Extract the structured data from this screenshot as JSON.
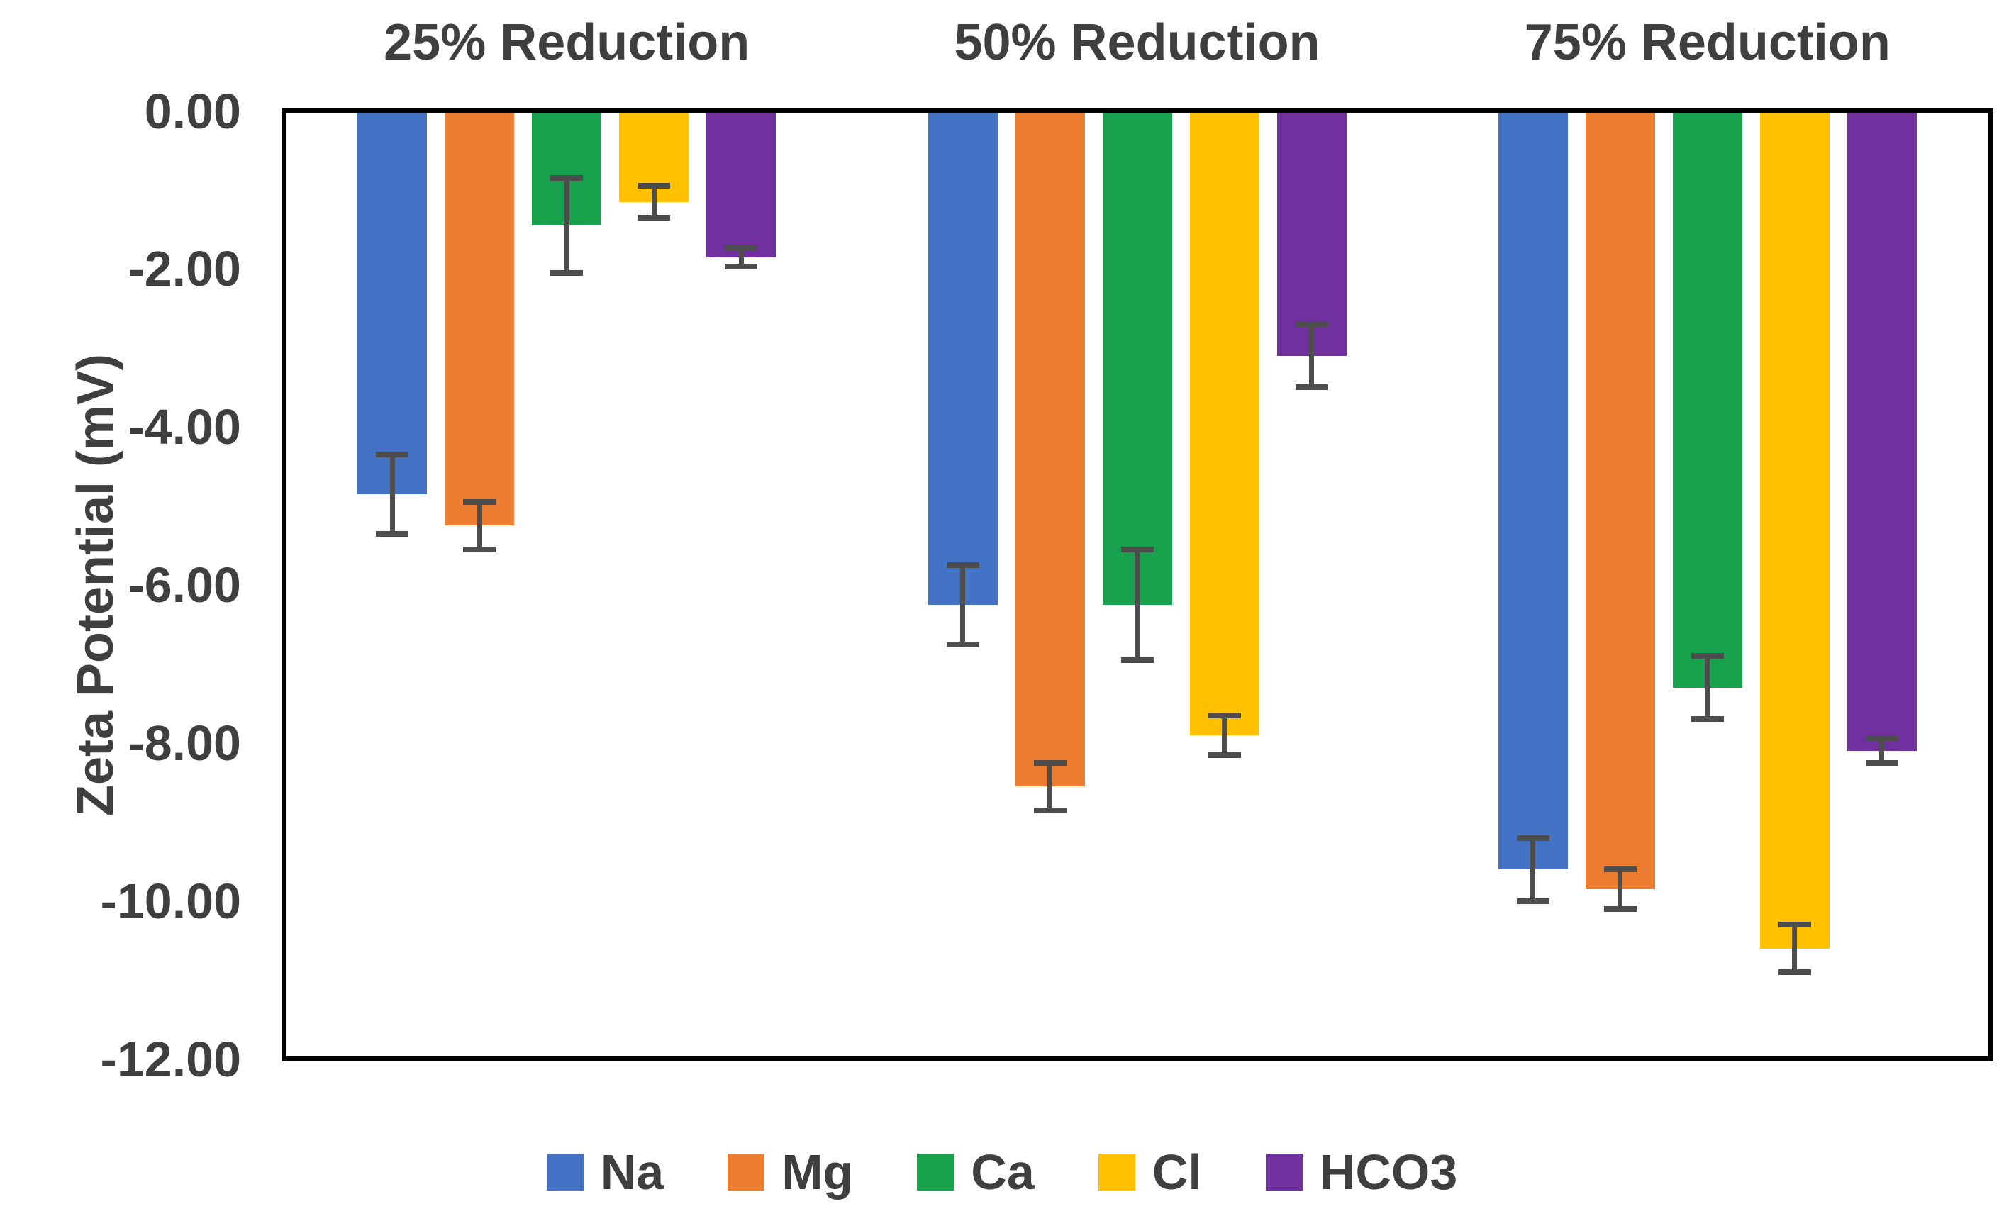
{
  "chart_data": {
    "type": "bar",
    "title": "",
    "xlabel": "",
    "ylabel": "Zeta Potential (mV)",
    "categories": [
      "25% Reduction",
      "50% Reduction",
      "75% Reduction"
    ],
    "series": [
      {
        "name": "Na",
        "color": "#4472C4",
        "values": [
          -4.85,
          -6.25,
          -9.6
        ],
        "errors": [
          0.5,
          0.5,
          0.4
        ]
      },
      {
        "name": "Mg",
        "color": "#ED7D31",
        "values": [
          -5.25,
          -8.55,
          -9.85
        ],
        "errors": [
          0.3,
          0.3,
          0.25
        ]
      },
      {
        "name": "Ca",
        "color": "#18A24D",
        "values": [
          -1.45,
          -6.25,
          -7.3
        ],
        "errors": [
          0.6,
          0.7,
          0.4
        ]
      },
      {
        "name": "Cl",
        "color": "#FFC000",
        "values": [
          -1.15,
          -7.9,
          -10.6
        ],
        "errors": [
          0.2,
          0.25,
          0.3
        ]
      },
      {
        "name": "HCO3",
        "color": "#7030A0",
        "values": [
          -1.85,
          -3.1,
          -8.1
        ],
        "errors": [
          0.12,
          0.4,
          0.15
        ]
      }
    ],
    "y_axis": {
      "min": -12,
      "max": 0,
      "step": 2,
      "tick_labels": [
        "0.00",
        "-2.00",
        "-4.00",
        "-6.00",
        "-8.00",
        "-10.00",
        "-12.00"
      ]
    },
    "legend_position": "bottom",
    "grid": false,
    "colors": {
      "text": "#3F3F3F",
      "plot_border": "#000000",
      "error_bar": "#4D4D4D",
      "background": "#FFFFFF"
    }
  }
}
